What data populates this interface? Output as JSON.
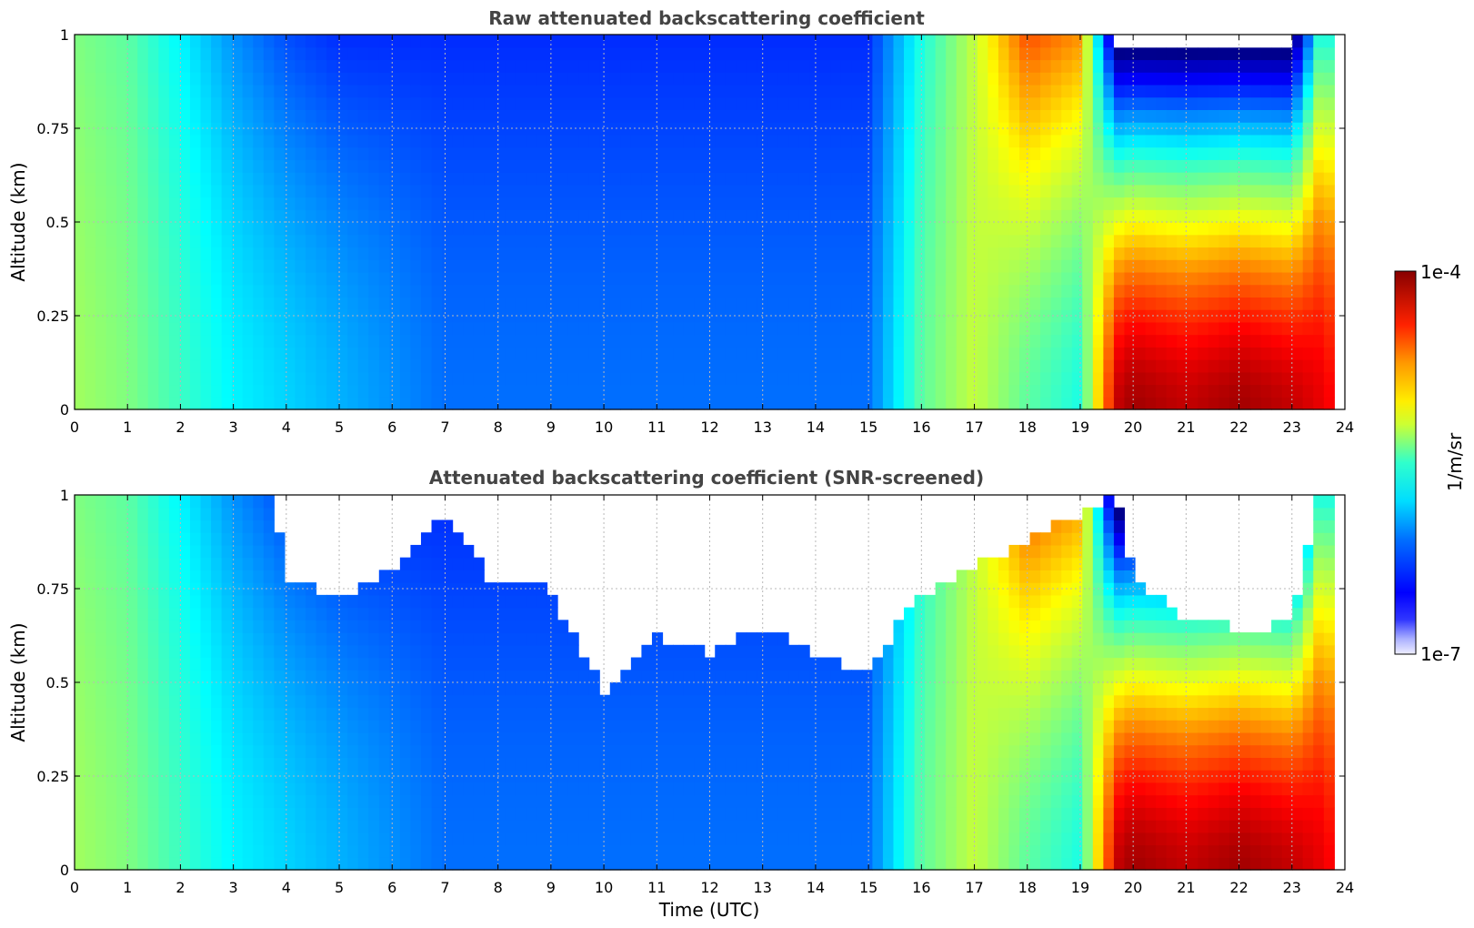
{
  "chart_data": [
    {
      "type": "heatmap",
      "title": "Raw attenuated backscattering coefficient",
      "xlabel": "",
      "ylabel": "Altitude (km)",
      "xlim": [
        0,
        24
      ],
      "ylim": [
        0,
        1
      ],
      "x_ticks": [
        "0",
        "1",
        "2",
        "3",
        "4",
        "5",
        "6",
        "7",
        "8",
        "9",
        "10",
        "11",
        "12",
        "13",
        "14",
        "15",
        "16",
        "17",
        "18",
        "19",
        "20",
        "21",
        "22",
        "23",
        "24"
      ],
      "y_ticks": [
        "0",
        "0.25",
        "0.5",
        "0.75",
        "1"
      ],
      "data_end_hour": 23.8,
      "grid": true,
      "screened": false,
      "time_hours": [
        0,
        1,
        2,
        3,
        4,
        5,
        6,
        7,
        8,
        9,
        10,
        11,
        12,
        13,
        14,
        15,
        16,
        17,
        18,
        19,
        19.7,
        20,
        21,
        22,
        23,
        23.5,
        23.8
      ],
      "log10_backscatter_near_surface": [
        -5.4,
        -5.5,
        -5.7,
        -5.9,
        -6.0,
        -6.1,
        -6.2,
        -6.3,
        -6.3,
        -6.3,
        -6.3,
        -6.3,
        -6.3,
        -6.3,
        -6.3,
        -6.3,
        -5.6,
        -5.3,
        -5.6,
        -5.8,
        -4.2,
        -4.1,
        -4.2,
        -4.1,
        -4.2,
        -4.3,
        -4.4
      ],
      "log10_backscatter_at_1km": [
        -5.5,
        -5.6,
        -5.9,
        -6.2,
        -6.4,
        -6.5,
        -6.5,
        -6.5,
        -6.5,
        -6.5,
        -6.5,
        -6.5,
        -6.5,
        -6.5,
        -6.5,
        -6.5,
        -5.8,
        -5.3,
        -4.6,
        -4.8,
        -7.2,
        -7.2,
        -7.2,
        -7.2,
        -7.2,
        -5.8,
        -5.8
      ]
    },
    {
      "type": "heatmap",
      "title": "Attenuated backscattering coefficient (SNR-screened)",
      "xlabel": "Time (UTC)",
      "ylabel": "Altitude (km)",
      "xlim": [
        0,
        24
      ],
      "ylim": [
        0,
        1
      ],
      "x_ticks": [
        "0",
        "1",
        "2",
        "3",
        "4",
        "5",
        "6",
        "7",
        "8",
        "9",
        "10",
        "11",
        "12",
        "13",
        "14",
        "15",
        "16",
        "17",
        "18",
        "19",
        "20",
        "21",
        "22",
        "23",
        "24"
      ],
      "y_ticks": [
        "0",
        "0.25",
        "0.5",
        "0.75",
        "1"
      ],
      "data_end_hour": 23.8,
      "grid": true,
      "screened": true,
      "screen_boundary_hours": [
        3.75,
        4,
        5,
        6,
        7,
        8,
        9,
        9.5,
        10,
        11,
        12,
        13,
        14,
        15,
        15.8,
        19.7,
        20,
        20.5,
        21,
        21.5,
        22,
        22.5,
        23,
        23.2,
        23.5
      ],
      "screen_boundary_altitude_km": [
        1.0,
        0.78,
        0.72,
        0.8,
        0.95,
        0.75,
        0.75,
        0.6,
        0.48,
        0.62,
        0.58,
        0.65,
        0.58,
        0.52,
        0.72,
        1.0,
        0.78,
        0.72,
        0.67,
        0.66,
        0.64,
        0.64,
        0.68,
        0.8,
        1.0
      ]
    }
  ],
  "colorbar": {
    "max_label": "1e-4",
    "min_label": "1e-7",
    "unit_label": "1/m/sr",
    "colormap": "jet",
    "scale": "log",
    "range": [
      1e-07,
      0.0001
    ]
  }
}
